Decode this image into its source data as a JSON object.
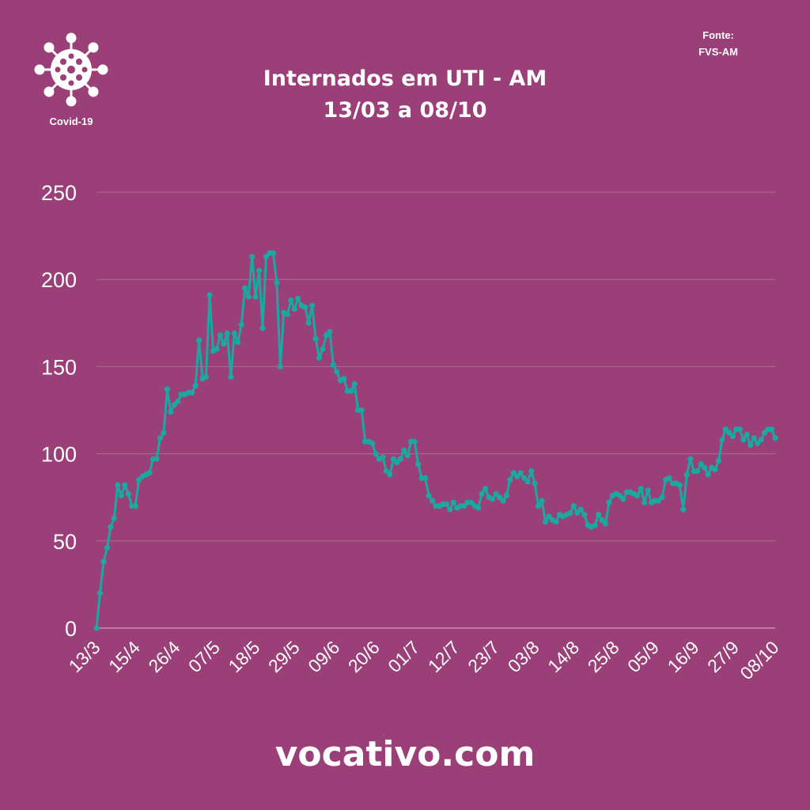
{
  "header": {
    "title_line1": "Internados em UTI - AM",
    "title_line2": "13/03 a 08/10",
    "source_label": "Fonte:",
    "source_value": "FVS-AM",
    "logo_caption": "Covid-19",
    "logo_icon": "virus-icon"
  },
  "footer": {
    "brand": "vocativo.com"
  },
  "colors": {
    "background": "#9a3f78",
    "line": "#1aa8a0",
    "grid": "#b06a98",
    "text": "#ffffff"
  },
  "chart_data": {
    "type": "line",
    "title": "Internados em UTI - AM",
    "subtitle": "13/03 a 08/10",
    "xlabel": "",
    "ylabel": "",
    "ylim": [
      0,
      250
    ],
    "yticks": [
      0,
      50,
      100,
      150,
      200,
      250
    ],
    "grid": true,
    "x_tick_labels": [
      "13/3",
      "15/4",
      "26/4",
      "07/5",
      "18/5",
      "29/5",
      "09/6",
      "20/6",
      "01/7",
      "12/7",
      "23/7",
      "03/8",
      "14/8",
      "25/8",
      "05/9",
      "16/9",
      "27/9",
      "08/10"
    ],
    "series": [
      {
        "values": [
          0,
          20,
          38,
          46,
          58,
          63,
          82,
          76,
          82,
          77,
          70,
          70,
          85,
          87,
          88,
          89,
          97,
          97,
          109,
          112,
          137,
          124,
          128,
          130,
          134,
          134,
          135,
          135,
          139,
          165,
          143,
          144,
          191,
          159,
          160,
          168,
          163,
          169,
          144,
          169,
          164,
          174,
          195,
          190,
          213,
          190,
          205,
          172,
          213,
          215,
          215,
          198,
          150,
          181,
          180,
          188,
          183,
          189,
          185,
          184,
          175,
          185,
          166,
          155,
          160,
          168,
          170,
          151,
          147,
          142,
          143,
          136,
          136,
          140,
          125,
          125,
          107,
          107,
          106,
          100,
          97,
          98,
          90,
          88,
          97,
          95,
          97,
          102,
          99,
          107,
          107,
          94,
          86,
          86,
          76,
          73,
          70,
          70,
          71,
          71,
          68,
          72,
          69,
          70,
          70,
          72,
          72,
          70,
          69,
          77,
          80,
          75,
          74,
          77,
          75,
          73,
          76,
          85,
          89,
          87,
          89,
          86,
          84,
          90,
          83,
          70,
          73,
          61,
          64,
          62,
          61,
          65,
          64,
          65,
          66,
          70,
          66,
          68,
          65,
          59,
          58,
          59,
          65,
          62,
          60,
          72,
          76,
          77,
          76,
          74,
          78,
          78,
          77,
          76,
          80,
          72,
          79,
          72,
          73,
          73,
          75,
          85,
          86,
          83,
          83,
          82,
          68,
          88,
          97,
          90,
          90,
          94,
          92,
          88,
          92,
          91,
          96,
          108,
          114,
          112,
          110,
          114,
          114,
          108,
          111,
          105,
          109,
          106,
          108,
          112,
          114,
          114,
          109
        ]
      }
    ]
  }
}
